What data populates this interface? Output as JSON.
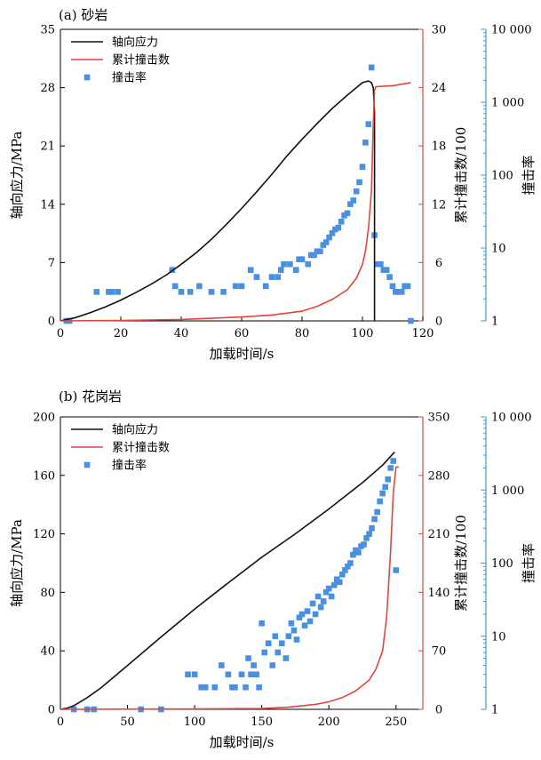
{
  "colors": {
    "stress": "#111111",
    "cumulative": "#e0473a",
    "rate": "#4a90e2",
    "right_axis_red": "#e0473a",
    "right_axis_blue": "#3d9fd6"
  },
  "chart_data": [
    {
      "type": "line",
      "panel_label": "(a) 砂岩",
      "xlabel": "加载时间/s",
      "ylabel_left": "轴向应力/MPa",
      "ylabel_right1": "累计撞击数/100",
      "ylabel_right2": "撞击率",
      "legend": [
        "轴向应力",
        "累计撞击数",
        "撞击率"
      ],
      "legend_position": "top-left",
      "grid": false,
      "xlim": [
        0,
        120
      ],
      "xticks": [
        0,
        20,
        40,
        60,
        80,
        100,
        120
      ],
      "ylim_left": [
        0,
        35
      ],
      "yticks_left": [
        0,
        7,
        14,
        21,
        28,
        35
      ],
      "ylim_right1": [
        0,
        30
      ],
      "yticks_right1": [
        0,
        6,
        12,
        18,
        24,
        30
      ],
      "ylim_right2": [
        1,
        10000
      ],
      "yticks_right2": [
        1,
        10,
        100,
        1000,
        10000
      ],
      "yticklabels_right2": [
        "1",
        "10",
        "100",
        "1 000",
        "10 000"
      ],
      "y_right2_scale": "log",
      "series": [
        {
          "name": "轴向应力",
          "axis": "left",
          "x": [
            0,
            5,
            10,
            15,
            20,
            25,
            30,
            35,
            40,
            45,
            50,
            55,
            60,
            65,
            70,
            75,
            80,
            85,
            90,
            95,
            100,
            102,
            103,
            103.6,
            104,
            104,
            104
          ],
          "y": [
            0,
            0.4,
            1.0,
            1.7,
            2.5,
            3.4,
            4.4,
            5.5,
            6.8,
            8.2,
            9.8,
            11.6,
            13.5,
            15.5,
            17.6,
            19.8,
            21.8,
            23.7,
            25.5,
            27.1,
            28.6,
            28.8,
            28.6,
            28.0,
            25.0,
            5.0,
            0
          ]
        },
        {
          "name": "累计撞击数",
          "axis": "right1",
          "x": [
            0,
            20,
            40,
            60,
            70,
            80,
            85,
            90,
            95,
            98,
            100,
            101,
            102,
            103,
            103.5,
            104,
            104.5,
            110,
            116
          ],
          "y": [
            0,
            0.05,
            0.15,
            0.4,
            0.6,
            1.0,
            1.5,
            2.2,
            3.2,
            4.4,
            5.8,
            7.2,
            9.5,
            13.5,
            19.5,
            23.7,
            24.1,
            24.2,
            24.5
          ]
        },
        {
          "name": "撞击率",
          "axis": "right2",
          "mode": "scatter",
          "x": [
            2,
            3,
            12,
            16,
            17,
            19,
            37,
            38,
            40,
            43,
            46,
            50,
            54,
            58,
            60,
            63,
            65,
            68,
            70,
            72,
            73,
            74,
            76,
            78,
            79,
            80,
            82,
            83,
            84,
            85,
            86,
            87,
            88,
            89,
            90,
            91,
            92,
            93,
            94,
            95,
            96,
            97,
            98,
            99,
            100,
            101,
            102,
            103,
            104,
            105,
            106,
            107,
            108,
            109,
            110,
            111,
            112,
            113,
            114,
            115,
            116
          ],
          "y": [
            1,
            1,
            2.5,
            2.5,
            2.5,
            2.5,
            5,
            3,
            2.5,
            2.5,
            3,
            2.5,
            2.5,
            3,
            3,
            5,
            4,
            3,
            4,
            4,
            5,
            6,
            6,
            5,
            7,
            7,
            6,
            8,
            8,
            9,
            9,
            11,
            12,
            14,
            16,
            18,
            19,
            23,
            28,
            30,
            40,
            45,
            60,
            80,
            130,
            280,
            500,
            3000,
            15,
            6,
            6,
            5,
            5,
            4,
            3,
            2.5,
            2.5,
            2.5,
            3,
            3,
            1
          ]
        }
      ]
    },
    {
      "type": "line",
      "panel_label": "(b) 花岗岩",
      "xlabel": "加载时间/s",
      "ylabel_left": "轴向应力/MPa",
      "ylabel_right1": "累计撞击数/100",
      "ylabel_right2": "撞击率",
      "legend": [
        "轴向应力",
        "累计撞击数",
        "撞击率"
      ],
      "legend_position": "top-left",
      "grid": false,
      "xlim": [
        0,
        270
      ],
      "xticks": [
        0,
        50,
        100,
        150,
        200,
        250
      ],
      "ylim_left": [
        0,
        200
      ],
      "yticks_left": [
        0,
        40,
        80,
        120,
        160,
        200
      ],
      "ylim_right1": [
        0,
        350
      ],
      "yticks_right1": [
        0,
        70,
        140,
        210,
        280,
        350
      ],
      "ylim_right2": [
        1,
        10000
      ],
      "yticks_right2": [
        1,
        10,
        100,
        1000,
        10000
      ],
      "yticklabels_right2": [
        "1",
        "10",
        "100",
        "1 000",
        "10 000"
      ],
      "y_right2_scale": "log",
      "series": [
        {
          "name": "轴向应力",
          "axis": "left",
          "x": [
            0,
            5,
            10,
            20,
            30,
            50,
            75,
            100,
            125,
            150,
            175,
            200,
            225,
            240,
            248,
            249
          ],
          "y": [
            0,
            0.8,
            2.5,
            8,
            14.5,
            30,
            49.5,
            68.5,
            86.5,
            104,
            120,
            137,
            155,
            167,
            175,
            176
          ]
        },
        {
          "name": "累计撞击数",
          "axis": "right1",
          "x": [
            0,
            100,
            150,
            170,
            190,
            200,
            210,
            220,
            230,
            235,
            240,
            243,
            246,
            248,
            250,
            252
          ],
          "y": [
            0,
            0.5,
            1,
            2.5,
            6,
            9,
            14,
            22,
            35,
            48,
            70,
            110,
            190,
            260,
            290,
            290
          ]
        },
        {
          "name": "撞击率",
          "axis": "right2",
          "mode": "scatter",
          "x": [
            10,
            20,
            25,
            60,
            75,
            95,
            100,
            105,
            108,
            115,
            120,
            125,
            128,
            130,
            135,
            138,
            140,
            142,
            144,
            146,
            148,
            150,
            152,
            155,
            158,
            160,
            162,
            165,
            168,
            170,
            172,
            174,
            176,
            178,
            180,
            182,
            184,
            186,
            188,
            190,
            192,
            194,
            196,
            198,
            200,
            202,
            204,
            206,
            208,
            210,
            212,
            214,
            216,
            218,
            220,
            222,
            224,
            226,
            228,
            230,
            232,
            234,
            236,
            238,
            240,
            242,
            244,
            246,
            248,
            250
          ],
          "y": [
            1,
            1,
            1,
            1,
            1,
            3,
            3,
            2,
            2,
            2,
            4,
            3,
            2,
            2,
            3,
            2,
            5,
            3,
            4,
            3,
            2,
            15,
            6,
            8,
            4,
            10,
            6,
            8,
            5,
            10,
            15,
            12,
            9,
            18,
            20,
            14,
            22,
            16,
            28,
            20,
            35,
            25,
            30,
            40,
            45,
            35,
            50,
            60,
            55,
            70,
            80,
            90,
            100,
            130,
            150,
            140,
            170,
            180,
            220,
            250,
            300,
            400,
            500,
            700,
            900,
            1100,
            1400,
            2000,
            2500,
            80
          ]
        }
      ]
    }
  ]
}
